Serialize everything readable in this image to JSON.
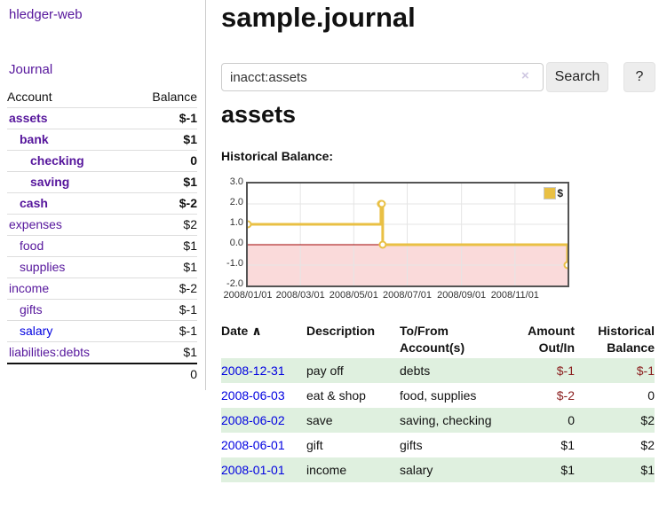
{
  "colors": {
    "link_purple": "#56169c",
    "link_blue": "#0000e0",
    "negative_strong": "#8b1e1e",
    "negative_muted": "#b4666a",
    "row_stripe_green": "#dff0df",
    "chart_line_gold": "#e9c044",
    "chart_negative_pink": "#fadada",
    "chart_zero_red": "#a00000"
  },
  "app": {
    "brand": "hledger-web",
    "nav_journal": "Journal"
  },
  "sidebar": {
    "account_header": "Account",
    "balance_header": "Balance",
    "rows": [
      {
        "account": "assets",
        "balance": "$-1",
        "indent": 0,
        "bold": true,
        "balance_style": "negative"
      },
      {
        "account": "bank",
        "balance": "$1",
        "indent": 1,
        "bold": true,
        "balance_style": "normal"
      },
      {
        "account": "checking",
        "balance": "0",
        "indent": 2,
        "bold": true,
        "balance_style": "normal"
      },
      {
        "account": "saving",
        "balance": "$1",
        "indent": 2,
        "bold": true,
        "balance_style": "normal"
      },
      {
        "account": "cash",
        "balance": "$-2",
        "indent": 1,
        "bold": true,
        "balance_style": "negative"
      },
      {
        "account": "expenses",
        "balance": "$2",
        "indent": 0,
        "bold": false,
        "balance_style": "normal"
      },
      {
        "account": "food",
        "balance": "$1",
        "indent": 1,
        "bold": false,
        "balance_style": "normal"
      },
      {
        "account": "supplies",
        "balance": "$1",
        "indent": 1,
        "bold": false,
        "balance_style": "normal"
      },
      {
        "account": "income",
        "balance": "$-2",
        "indent": 0,
        "bold": false,
        "balance_style": "negative-muted"
      },
      {
        "account": "gifts",
        "balance": "$-1",
        "indent": 1,
        "bold": false,
        "balance_style": "negative-muted"
      },
      {
        "account": "salary",
        "balance": "$-1",
        "indent": 1,
        "bold": false,
        "balance_style": "negative-muted",
        "link_variant": "unvisited"
      },
      {
        "account": "liabilities:debts",
        "balance": "$1",
        "indent": 0,
        "bold": false,
        "balance_style": "normal"
      }
    ],
    "total": "0"
  },
  "main": {
    "title": "sample.journal",
    "search": {
      "value": "inacct:assets",
      "clear_icon": "×",
      "search_button": "Search",
      "help_button": "?"
    },
    "account_heading": "assets",
    "chart_title": "Historical Balance:"
  },
  "chart_data": {
    "type": "line",
    "step": true,
    "title": "Historical Balance:",
    "grid": true,
    "legend_position": "top-right",
    "legend": [
      {
        "label": "$",
        "color": "#e9c044"
      }
    ],
    "ylim": [
      -2,
      3
    ],
    "yticks": [
      3.0,
      2.0,
      1.0,
      0.0,
      -1.0,
      -2.0
    ],
    "ytick_labels": [
      "3.0",
      "2.0",
      "1.0",
      "0.0",
      "-1.0",
      "-2.0"
    ],
    "xtick_labels": [
      "2008/01/01",
      "2008/03/01",
      "2008/05/01",
      "2008/07/01",
      "2008/09/01",
      "2008/11/01"
    ],
    "xtick_days": [
      0,
      60,
      121,
      182,
      244,
      305
    ],
    "x_total_days": 365,
    "series": [
      {
        "name": "$",
        "color": "#e9c044",
        "points": [
          {
            "date": "2008-01-01",
            "day": 0,
            "value": 1
          },
          {
            "date": "2008-06-01",
            "day": 152,
            "value": 2
          },
          {
            "date": "2008-06-02",
            "day": 153,
            "value": 2
          },
          {
            "date": "2008-06-03",
            "day": 154,
            "value": 0
          },
          {
            "date": "2008-12-31",
            "day": 365,
            "value": -1
          }
        ]
      }
    ],
    "negative_region_fill": "#fadada",
    "zero_line_color": "#a00000"
  },
  "register": {
    "sort_icon": "∧",
    "headers": [
      {
        "label": "Date",
        "align": "left",
        "sorted": true
      },
      {
        "label": "Description",
        "align": "left"
      },
      {
        "label": "To/From Account(s)",
        "align": "left"
      },
      {
        "label": "Amount Out/In",
        "align": "right"
      },
      {
        "label": "Historical Balance",
        "align": "right"
      }
    ],
    "rows": [
      {
        "date": "2008-12-31",
        "description": "pay off",
        "accounts": "debts",
        "amount": "$-1",
        "amount_negative": true,
        "balance": "$-1",
        "balance_negative": true,
        "shaded": true
      },
      {
        "date": "2008-06-03",
        "description": "eat & shop",
        "accounts": "food, supplies",
        "amount": "$-2",
        "amount_negative": true,
        "balance": "0",
        "balance_negative": false,
        "shaded": false
      },
      {
        "date": "2008-06-02",
        "description": "save",
        "accounts": "saving, checking",
        "amount": "0",
        "amount_negative": false,
        "balance": "$2",
        "balance_negative": false,
        "shaded": true
      },
      {
        "date": "2008-06-01",
        "description": "gift",
        "accounts": "gifts",
        "amount": "$1",
        "amount_negative": false,
        "balance": "$2",
        "balance_negative": false,
        "shaded": false
      },
      {
        "date": "2008-01-01",
        "description": "income",
        "accounts": "salary",
        "amount": "$1",
        "amount_negative": false,
        "balance": "$1",
        "balance_negative": false,
        "shaded": true
      }
    ]
  }
}
